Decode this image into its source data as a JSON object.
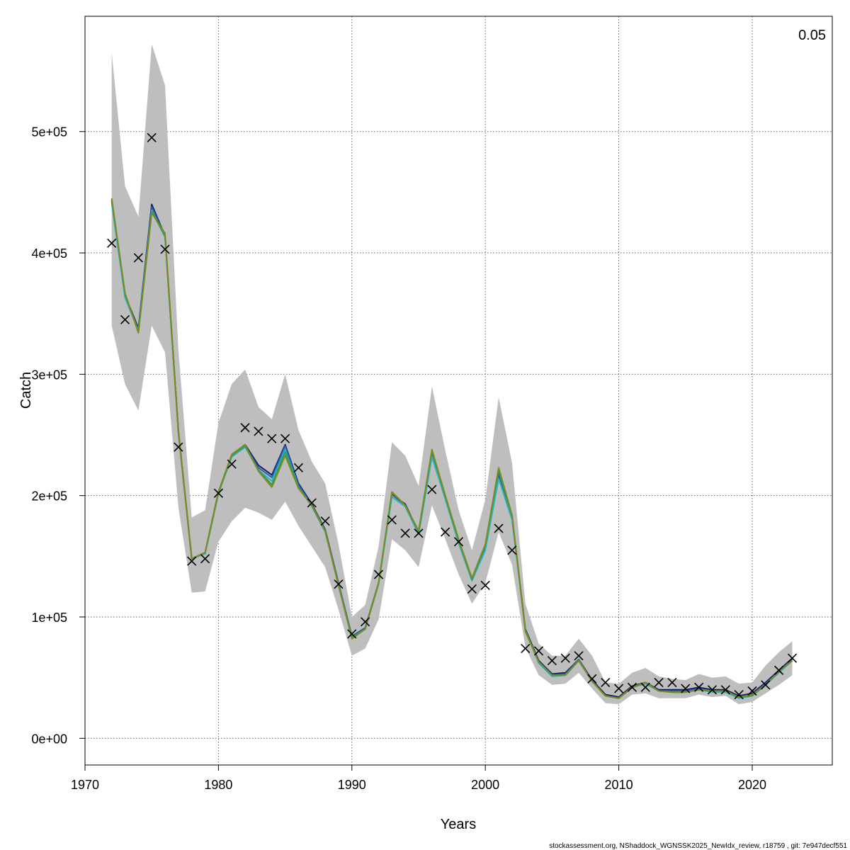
{
  "chart_data": {
    "type": "line",
    "xlabel": "Years",
    "ylabel": "Catch",
    "corner_label": "0.05",
    "footer": "stockassessment.org, NShaddock_WGNSSK2025_NewIdx_review, r18759 , git: 7e947decf551",
    "xlim": [
      1970,
      2026
    ],
    "ylim": [
      -22000,
      595000
    ],
    "x_ticks": [
      1970,
      1980,
      1990,
      2000,
      2010,
      2020
    ],
    "y_ticks": [
      0,
      100000,
      200000,
      300000,
      400000,
      500000
    ],
    "y_tick_labels": [
      "0e+00",
      "1e+05",
      "2e+05",
      "3e+05",
      "4e+05",
      "5e+05"
    ],
    "grid": true,
    "colors": {
      "band": "#bebebe",
      "series": [
        "#1a1a6e",
        "#2c5ea8",
        "#26b4c8",
        "#2e9e5a",
        "#7f8a1e"
      ],
      "observed": "#000000"
    },
    "years": [
      1972,
      1973,
      1974,
      1975,
      1976,
      1977,
      1978,
      1979,
      1980,
      1981,
      1982,
      1983,
      1984,
      1985,
      1986,
      1987,
      1988,
      1989,
      1990,
      1991,
      1992,
      1993,
      1994,
      1995,
      1996,
      1997,
      1998,
      1999,
      2000,
      2001,
      2002,
      2003,
      2004,
      2005,
      2006,
      2007,
      2008,
      2009,
      2010,
      2011,
      2012,
      2013,
      2014,
      2015,
      2016,
      2017,
      2018,
      2019,
      2020,
      2021,
      2022,
      2023
    ],
    "band_upper": [
      565000,
      455000,
      430000,
      572000,
      538000,
      320000,
      182000,
      188000,
      260000,
      292000,
      304000,
      273000,
      263000,
      300000,
      254000,
      228000,
      210000,
      160000,
      100000,
      110000,
      158000,
      244000,
      233000,
      208000,
      290000,
      237000,
      188000,
      155000,
      197000,
      281000,
      227000,
      111000,
      78000,
      68000,
      68000,
      82000,
      68000,
      46000,
      45000,
      54000,
      58000,
      51000,
      49000,
      48000,
      53000,
      50000,
      51000,
      45000,
      46000,
      60000,
      71000,
      80000
    ],
    "band_lower": [
      340000,
      292000,
      270000,
      340000,
      318000,
      190000,
      120000,
      121000,
      162000,
      179000,
      190000,
      186000,
      180000,
      195000,
      175000,
      158000,
      141000,
      106000,
      68000,
      74000,
      98000,
      164000,
      155000,
      141000,
      192000,
      164000,
      135000,
      111000,
      128000,
      170000,
      143000,
      75000,
      52000,
      44000,
      45000,
      54000,
      41000,
      29000,
      28000,
      36000,
      37000,
      33000,
      33000,
      33000,
      36000,
      34000,
      35000,
      28000,
      30000,
      37000,
      44000,
      52000
    ],
    "series": [
      {
        "values": [
          443000,
          365000,
          338000,
          440000,
          414000,
          253000,
          148000,
          153000,
          203000,
          233000,
          242000,
          225000,
          217000,
          242000,
          210000,
          193000,
          172000,
          128000,
          84000,
          91000,
          128000,
          201000,
          193000,
          170000,
          235000,
          199000,
          162000,
          131000,
          158000,
          218000,
          183000,
          90000,
          64000,
          53000,
          54000,
          65000,
          48000,
          36000,
          34000,
          43000,
          46000,
          40000,
          40000,
          40000,
          42000,
          40000,
          40000,
          35000,
          37000,
          46000,
          56000,
          66000
        ]
      },
      {
        "values": [
          442000,
          364000,
          337000,
          438000,
          414000,
          253000,
          148000,
          153000,
          203000,
          233000,
          241000,
          223000,
          215000,
          241000,
          209000,
          192000,
          171000,
          128000,
          84000,
          91000,
          128000,
          201000,
          192000,
          169000,
          234000,
          198000,
          161000,
          130000,
          157000,
          217000,
          182000,
          89000,
          63000,
          52000,
          53000,
          65000,
          47000,
          35000,
          33000,
          42000,
          45000,
          39000,
          39000,
          39000,
          41000,
          39000,
          39000,
          34000,
          36000,
          45000,
          55000,
          65000
        ]
      },
      {
        "values": [
          441000,
          363000,
          336000,
          435000,
          413000,
          252000,
          148000,
          152000,
          202000,
          232000,
          240000,
          221000,
          212000,
          238000,
          207000,
          191000,
          170000,
          127000,
          83000,
          90000,
          127000,
          199000,
          191000,
          168000,
          232000,
          197000,
          161000,
          130000,
          155000,
          214000,
          180000,
          89000,
          62000,
          51000,
          52000,
          64000,
          47000,
          35000,
          33000,
          42000,
          45000,
          39000,
          38000,
          38000,
          40000,
          38000,
          38000,
          33000,
          35000,
          44000,
          54000,
          64000
        ]
      },
      {
        "values": [
          444000,
          366000,
          335000,
          434000,
          414000,
          252000,
          148000,
          153000,
          202000,
          233000,
          241000,
          221000,
          209000,
          236000,
          207000,
          192000,
          171000,
          126000,
          83000,
          90000,
          128000,
          203000,
          192000,
          170000,
          237000,
          199000,
          163000,
          131000,
          159000,
          221000,
          183000,
          89000,
          63000,
          52000,
          52000,
          64000,
          47000,
          35000,
          33000,
          42000,
          46000,
          39000,
          38000,
          38000,
          40000,
          39000,
          39000,
          34000,
          35000,
          44000,
          55000,
          64000
        ]
      },
      {
        "values": [
          445000,
          367000,
          334000,
          433000,
          416000,
          252000,
          148000,
          153000,
          203000,
          234000,
          242000,
          220000,
          207000,
          233000,
          206000,
          192000,
          171000,
          126000,
          82000,
          90000,
          128000,
          203000,
          192000,
          171000,
          238000,
          200000,
          164000,
          132000,
          160000,
          223000,
          184000,
          88000,
          63000,
          52000,
          52000,
          64000,
          47000,
          35000,
          33000,
          42000,
          46000,
          39000,
          38000,
          38000,
          40000,
          39000,
          39000,
          34000,
          36000,
          44000,
          55000,
          64000
        ]
      }
    ],
    "observed": [
      408000,
      345000,
      396000,
      495000,
      403000,
      240000,
      146000,
      148000,
      202000,
      226000,
      256000,
      253000,
      247000,
      247000,
      223000,
      194000,
      179000,
      127000,
      86000,
      96000,
      135000,
      180000,
      169000,
      169000,
      205000,
      170000,
      162000,
      123000,
      126000,
      173000,
      155000,
      74000,
      72000,
      64000,
      66000,
      68000,
      49000,
      46000,
      41000,
      42000,
      42000,
      46000,
      46000,
      41000,
      42000,
      40000,
      40000,
      36000,
      39000,
      44000,
      56000,
      66000
    ]
  }
}
